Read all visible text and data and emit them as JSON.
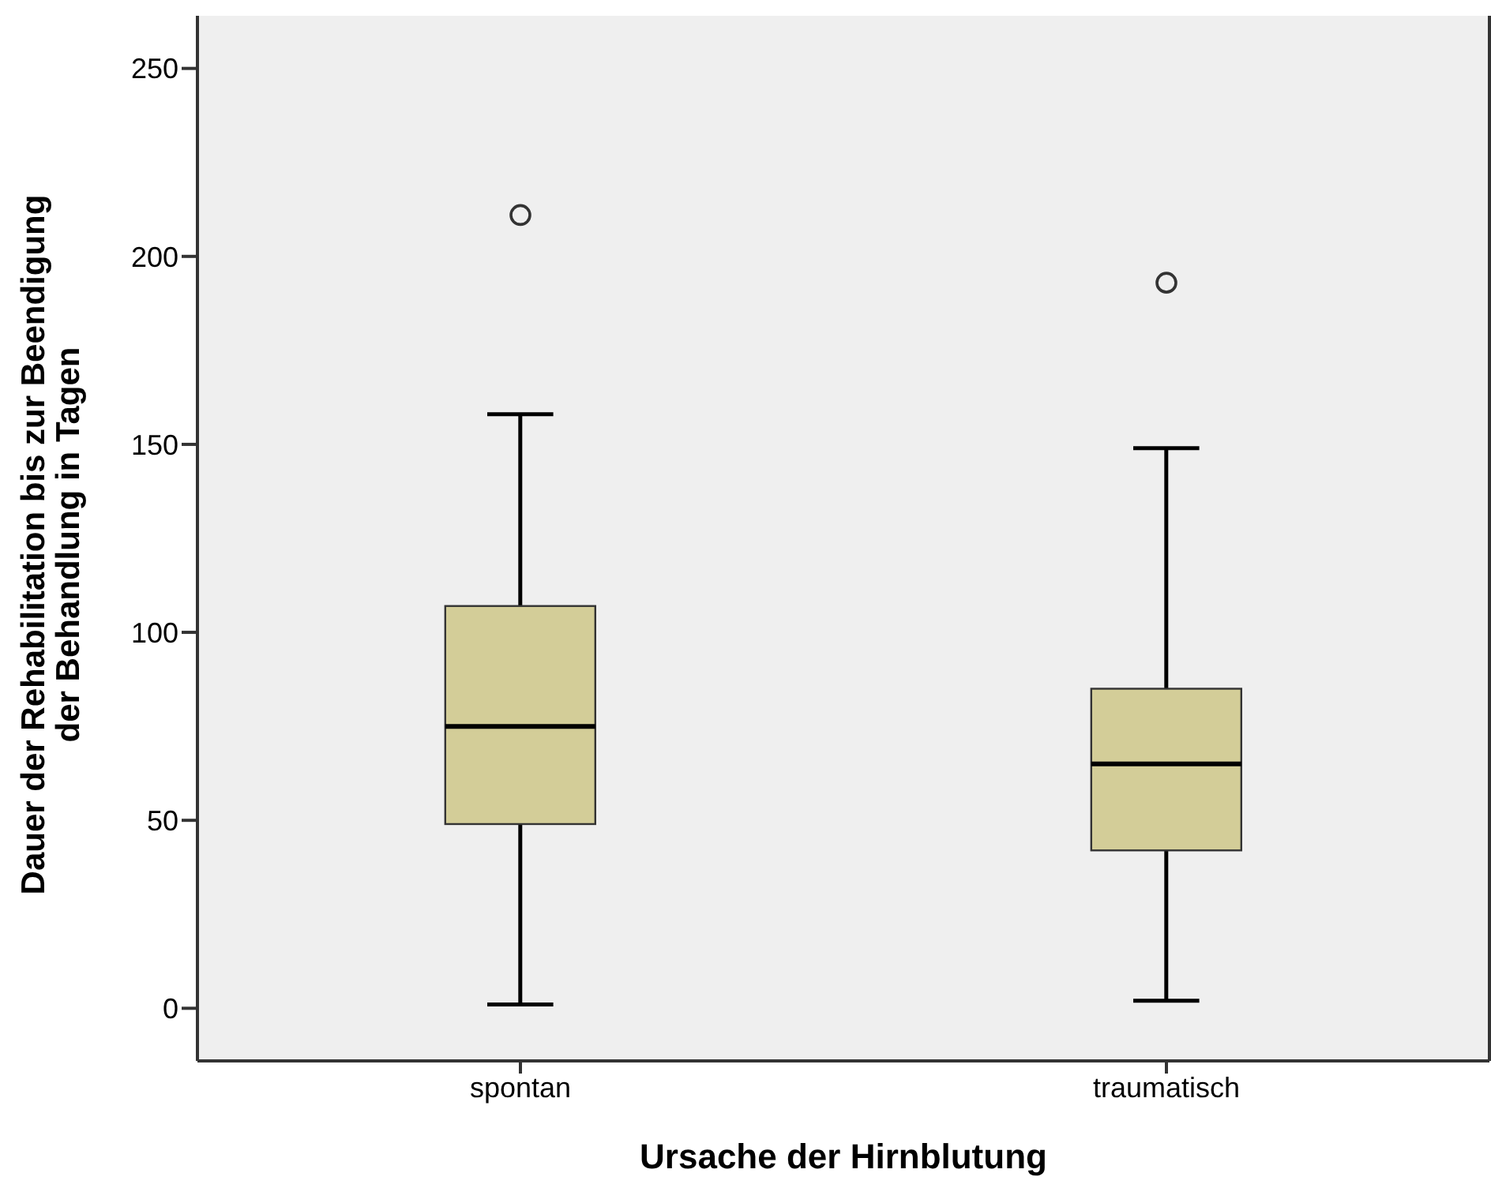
{
  "chart_data": {
    "type": "box",
    "xlabel": "Ursache der Hirnblutung",
    "ylabel": "Dauer der Rehabilitation bis zur Beendigung\nder Behandlung in Tagen",
    "categories": [
      "spontan",
      "traumatisch"
    ],
    "color": "#d3cd98",
    "boxes": [
      {
        "low": 1,
        "q1": 49,
        "median": 75,
        "q3": 107,
        "high": 158,
        "outliers": [
          211
        ]
      },
      {
        "low": 2,
        "q1": 42,
        "median": 65,
        "q3": 85,
        "high": 149,
        "outliers": [
          193
        ]
      }
    ],
    "ylim": [
      -14,
      264
    ],
    "yticks": [
      0,
      50,
      100,
      150,
      200,
      250
    ],
    "grid": false
  }
}
